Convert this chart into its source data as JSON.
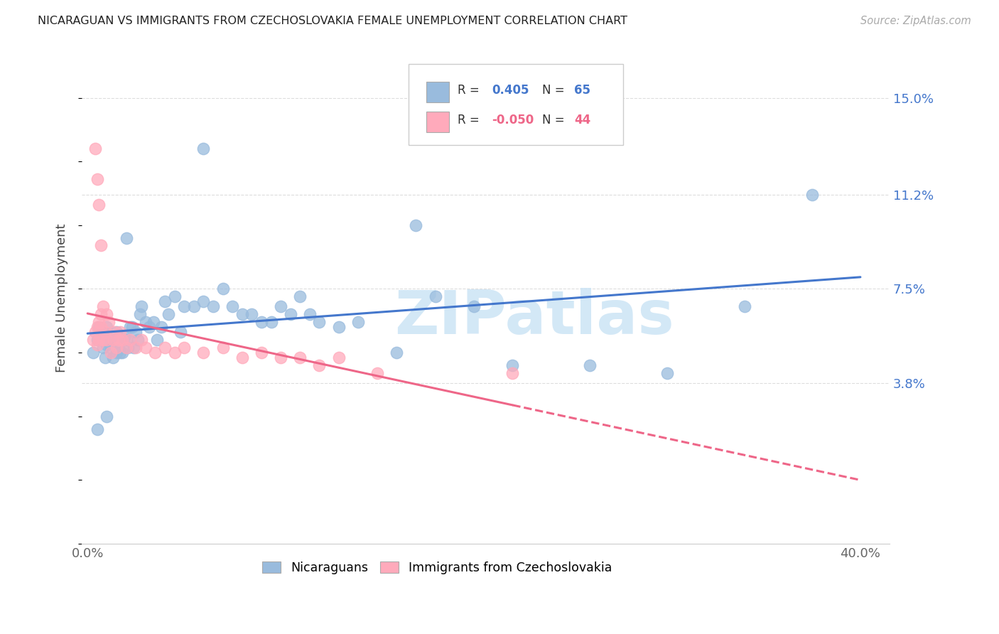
{
  "title": "NICARAGUAN VS IMMIGRANTS FROM CZECHOSLOVAKIA FEMALE UNEMPLOYMENT CORRELATION CHART",
  "source": "Source: ZipAtlas.com",
  "ylabel": "Female Unemployment",
  "xlim": [
    -0.003,
    0.415
  ],
  "ylim": [
    -0.025,
    0.168
  ],
  "xtick_values": [
    0.0,
    0.1,
    0.2,
    0.3,
    0.4
  ],
  "xticklabels": [
    "0.0%",
    "",
    "",
    "",
    "40.0%"
  ],
  "ytick_values": [
    0.038,
    0.075,
    0.112,
    0.15
  ],
  "ytick_labels": [
    "3.8%",
    "7.5%",
    "11.2%",
    "15.0%"
  ],
  "blue_scatter_color": "#99BBDD",
  "pink_scatter_color": "#FFAABB",
  "blue_line_color": "#4477CC",
  "pink_line_color": "#EE6688",
  "watermark": "ZIPatlas",
  "nicaraguan_x": [
    0.003,
    0.005,
    0.006,
    0.008,
    0.008,
    0.009,
    0.01,
    0.01,
    0.011,
    0.012,
    0.013,
    0.014,
    0.015,
    0.015,
    0.016,
    0.017,
    0.018,
    0.019,
    0.02,
    0.021,
    0.022,
    0.023,
    0.024,
    0.025,
    0.026,
    0.027,
    0.028,
    0.03,
    0.032,
    0.034,
    0.036,
    0.038,
    0.04,
    0.042,
    0.045,
    0.048,
    0.05,
    0.055,
    0.06,
    0.065,
    0.07,
    0.075,
    0.08,
    0.085,
    0.09,
    0.095,
    0.1,
    0.105,
    0.11,
    0.115,
    0.12,
    0.13,
    0.14,
    0.16,
    0.18,
    0.2,
    0.22,
    0.26,
    0.3,
    0.34,
    0.06,
    0.17,
    0.02,
    0.005,
    0.01,
    0.375
  ],
  "nicaraguan_y": [
    0.05,
    0.055,
    0.06,
    0.052,
    0.058,
    0.048,
    0.053,
    0.06,
    0.055,
    0.052,
    0.048,
    0.055,
    0.05,
    0.058,
    0.053,
    0.05,
    0.05,
    0.056,
    0.055,
    0.052,
    0.06,
    0.06,
    0.052,
    0.058,
    0.055,
    0.065,
    0.068,
    0.062,
    0.06,
    0.062,
    0.055,
    0.06,
    0.07,
    0.065,
    0.072,
    0.058,
    0.068,
    0.068,
    0.07,
    0.068,
    0.075,
    0.068,
    0.065,
    0.065,
    0.062,
    0.062,
    0.068,
    0.065,
    0.072,
    0.065,
    0.062,
    0.06,
    0.062,
    0.05,
    0.072,
    0.068,
    0.045,
    0.045,
    0.042,
    0.068,
    0.13,
    0.1,
    0.095,
    0.02,
    0.025,
    0.112
  ],
  "czechoslovakia_x": [
    0.003,
    0.004,
    0.005,
    0.005,
    0.006,
    0.006,
    0.007,
    0.007,
    0.008,
    0.008,
    0.009,
    0.01,
    0.01,
    0.011,
    0.012,
    0.013,
    0.014,
    0.015,
    0.016,
    0.017,
    0.018,
    0.02,
    0.022,
    0.025,
    0.028,
    0.03,
    0.035,
    0.04,
    0.045,
    0.05,
    0.06,
    0.07,
    0.08,
    0.09,
    0.1,
    0.11,
    0.12,
    0.13,
    0.15,
    0.22,
    0.004,
    0.005,
    0.006,
    0.007
  ],
  "czechoslovakia_y": [
    0.055,
    0.058,
    0.053,
    0.06,
    0.055,
    0.062,
    0.06,
    0.065,
    0.055,
    0.068,
    0.058,
    0.055,
    0.065,
    0.062,
    0.05,
    0.055,
    0.058,
    0.052,
    0.055,
    0.058,
    0.055,
    0.052,
    0.055,
    0.052,
    0.055,
    0.052,
    0.05,
    0.052,
    0.05,
    0.052,
    0.05,
    0.052,
    0.048,
    0.05,
    0.048,
    0.048,
    0.045,
    0.048,
    0.042,
    0.042,
    0.13,
    0.118,
    0.108,
    0.092
  ]
}
